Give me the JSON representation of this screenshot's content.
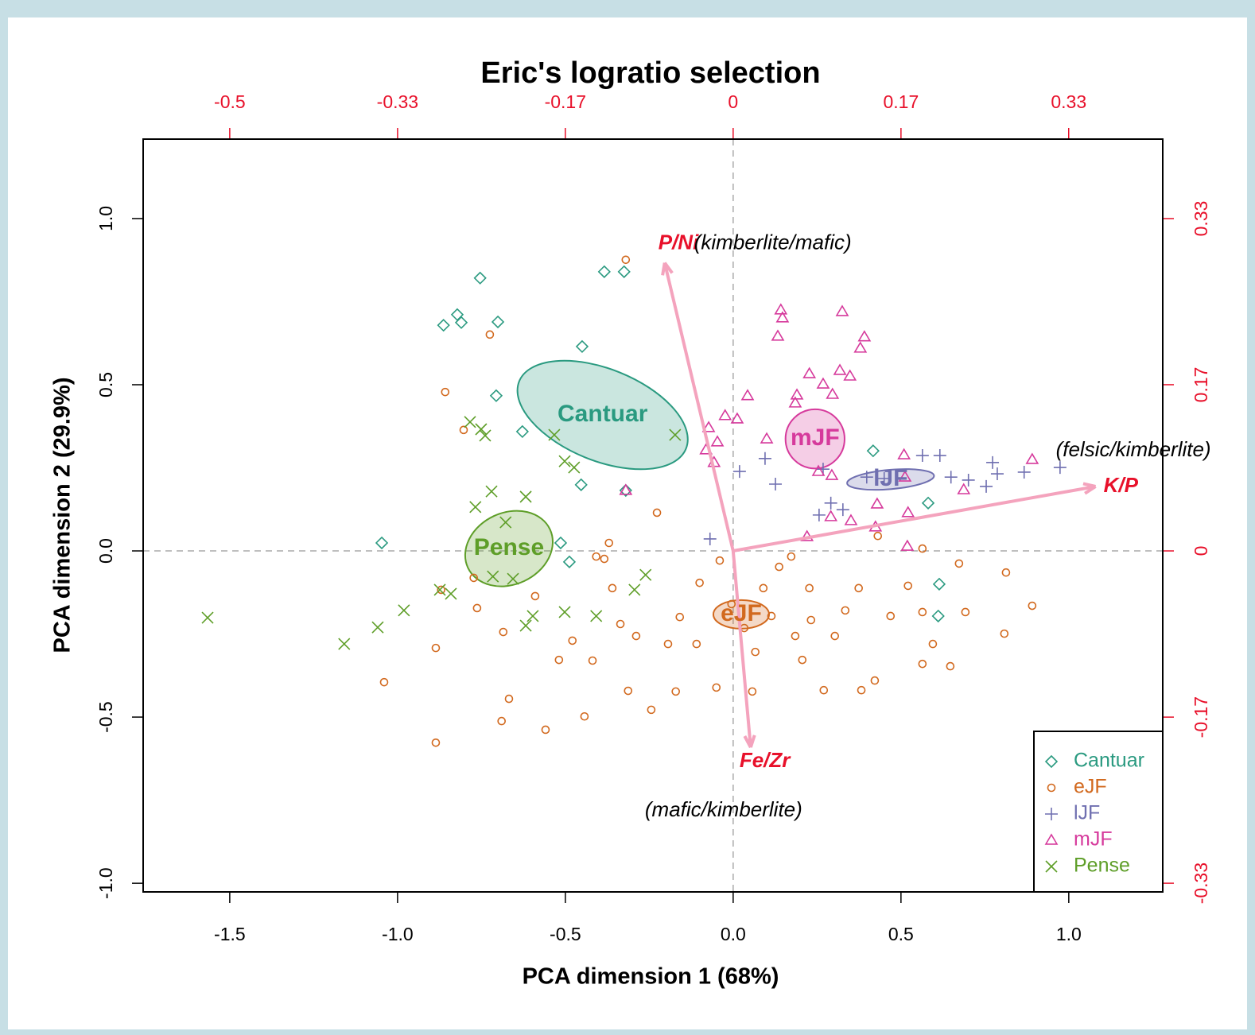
{
  "chart_data": {
    "type": "biplot",
    "title": "Eric's logratio selection",
    "xlabel": "PCA dimension 1 (68%)",
    "ylabel": "PCA dimension 2 (29.9%)",
    "xlim": [
      -1.758,
      1.28
    ],
    "ylim": [
      -1.026,
      1.239
    ],
    "xticks": [
      {
        "value": -1.5,
        "label": "-1.5"
      },
      {
        "value": -1,
        "label": "-1.0"
      },
      {
        "value": -0.5,
        "label": "-0.5"
      },
      {
        "value": 0,
        "label": "0.0"
      },
      {
        "value": 0.5,
        "label": "0.5"
      },
      {
        "value": 1,
        "label": "1.0"
      }
    ],
    "yticks": [
      {
        "value": -1,
        "label": "-1.0"
      },
      {
        "value": -0.5,
        "label": "-0.5"
      },
      {
        "value": 0,
        "label": "0.0"
      },
      {
        "value": 0.5,
        "label": "0.5"
      },
      {
        "value": 1,
        "label": "1.0"
      }
    ],
    "x2lim": [
      -0.586,
      0.4267
    ],
    "y2lim": [
      -0.342,
      0.413
    ],
    "x2ticks": [
      -0.5,
      {
        "value": -0.3333,
        "label": "-0.33"
      },
      {
        "value": -0.1667,
        "label": "-0.17"
      },
      0,
      {
        "value": 0.1667,
        "label": "0.17"
      },
      {
        "value": 0.3333,
        "label": "0.33"
      }
    ],
    "y2ticks": [
      {
        "value": -0.3333,
        "label": "-0.33"
      },
      {
        "value": -0.1667,
        "label": "-0.17"
      },
      0,
      {
        "value": 0.1667,
        "label": "0.17"
      },
      {
        "value": 0.3333,
        "label": "0.33"
      }
    ],
    "secondary_axis_color": "#e8102a",
    "zero_lines": true,
    "legend": "lower right",
    "series": [
      {
        "name": "Cantuar",
        "color": "#2a9a80",
        "marker": "diamond",
        "x": [
          -0.754,
          -0.863,
          -0.822,
          -0.81,
          -0.701,
          -0.384,
          -0.325,
          -0.45,
          -0.706,
          -0.628,
          -0.453,
          -1.047,
          -0.514,
          -0.488,
          -0.32,
          0.417,
          0.581,
          0.614,
          0.611
        ],
        "y": [
          0.821,
          0.679,
          0.711,
          0.687,
          0.689,
          0.84,
          0.84,
          0.615,
          0.467,
          0.359,
          0.199,
          0.024,
          0.024,
          -0.033,
          0.182,
          0.301,
          0.144,
          -0.1,
          -0.196
        ],
        "ellipse": {
          "x": -0.389,
          "y": 0.409,
          "rx": 0.268,
          "ry": 0.138,
          "angle": -22
        }
      },
      {
        "name": "eJF",
        "color": "#d2691e",
        "marker": "circle",
        "x": [
          -0.32,
          -0.725,
          -0.858,
          -0.803,
          -0.227,
          -0.37,
          -0.408,
          -0.384,
          -0.87,
          -0.763,
          -0.886,
          -1.04,
          -0.886,
          -0.69,
          -0.668,
          -0.559,
          -0.443,
          -0.313,
          -0.244,
          -0.171,
          -0.05,
          0.057,
          0.27,
          0.382,
          0.422,
          0.334,
          0.185,
          0.303,
          0.469,
          0.564,
          0.647,
          0.692,
          0.813,
          0.891,
          0.808,
          0.595,
          0.521,
          0.374,
          0.227,
          0.137,
          0.173,
          0.114,
          0.066,
          -0.1,
          -0.04,
          -0.159,
          -0.109,
          -0.194,
          -0.289,
          -0.336,
          -0.36,
          -0.479,
          -0.419,
          -0.519,
          -0.59,
          -0.685,
          -0.773,
          0.673,
          0.564,
          0.431,
          0.564,
          0.206,
          0.232,
          0.033,
          -0.005,
          0.09
        ],
        "y": [
          0.876,
          0.651,
          0.478,
          0.364,
          0.115,
          0.024,
          -0.017,
          -0.024,
          -0.117,
          -0.172,
          -0.292,
          -0.395,
          -0.577,
          -0.512,
          -0.445,
          -0.538,
          -0.498,
          -0.421,
          -0.478,
          -0.423,
          -0.411,
          -0.423,
          -0.419,
          -0.419,
          -0.39,
          -0.179,
          -0.256,
          -0.256,
          -0.196,
          -0.184,
          -0.347,
          -0.184,
          -0.065,
          -0.165,
          -0.249,
          -0.28,
          -0.105,
          -0.112,
          -0.112,
          -0.048,
          -0.017,
          -0.196,
          -0.304,
          -0.096,
          -0.029,
          -0.199,
          -0.28,
          -0.28,
          -0.256,
          -0.22,
          -0.112,
          -0.27,
          -0.33,
          -0.328,
          -0.136,
          -0.244,
          -0.081,
          -0.038,
          0.007,
          0.045,
          -0.34,
          -0.328,
          -0.208,
          -0.232,
          -0.16,
          -0.112
        ],
        "ellipse": {
          "x": 0.024,
          "y": -0.191,
          "rx": 0.083,
          "ry": 0.043,
          "angle": 0
        }
      },
      {
        "name": "lJF",
        "color": "#6f6fb0",
        "marker": "plus",
        "x": [
          -0.069,
          0.019,
          0.095,
          0.126,
          0.268,
          0.291,
          0.256,
          0.327,
          0.45,
          0.564,
          0.616,
          0.649,
          0.701,
          0.754,
          0.773,
          0.787,
          0.867,
          0.974,
          0.398
        ],
        "y": [
          0.036,
          0.239,
          0.278,
          0.201,
          0.246,
          0.144,
          0.108,
          0.124,
          0.218,
          0.287,
          0.287,
          0.222,
          0.213,
          0.194,
          0.266,
          0.232,
          0.237,
          0.251,
          0.222
        ],
        "ellipse": {
          "x": 0.469,
          "y": 0.215,
          "rx": 0.13,
          "ry": 0.029,
          "angle": 5
        }
      },
      {
        "name": "mJF",
        "color": "#d63a9c",
        "marker": "triangle",
        "x": [
          0.142,
          0.147,
          0.133,
          0.325,
          0.391,
          0.379,
          0.227,
          0.268,
          0.318,
          0.348,
          0.296,
          0.043,
          0.19,
          0.185,
          -0.024,
          0.012,
          -0.073,
          -0.047,
          0.1,
          -0.081,
          -0.057,
          0.254,
          0.294,
          0.509,
          0.512,
          0.687,
          0.891,
          0.429,
          0.521,
          0.424,
          0.351,
          0.22,
          0.519,
          0.291,
          -0.32
        ],
        "y": [
          0.725,
          0.701,
          0.646,
          0.72,
          0.644,
          0.61,
          0.533,
          0.502,
          0.543,
          0.526,
          0.471,
          0.467,
          0.469,
          0.445,
          0.407,
          0.397,
          0.371,
          0.328,
          0.337,
          0.304,
          0.266,
          0.239,
          0.227,
          0.289,
          0.222,
          0.184,
          0.275,
          0.141,
          0.115,
          0.072,
          0.091,
          0.043,
          0.014,
          0.103,
          0.182
        ],
        "ellipse": {
          "x": 0.244,
          "y": 0.337,
          "rx": 0.088,
          "ry": 0.089,
          "angle": 0
        }
      },
      {
        "name": "Pense",
        "color": "#5e9e28",
        "marker": "cross",
        "x": [
          -1.566,
          -1.159,
          -1.059,
          -0.981,
          -0.841,
          -0.874,
          -0.784,
          -0.751,
          -0.739,
          -0.72,
          -0.768,
          -0.618,
          -0.678,
          -0.716,
          -0.656,
          -0.533,
          -0.502,
          -0.474,
          -0.173,
          -0.618,
          -0.597,
          -0.502,
          -0.408,
          -0.294,
          -0.261
        ],
        "y": [
          -0.201,
          -0.28,
          -0.23,
          -0.179,
          -0.129,
          -0.117,
          0.388,
          0.366,
          0.347,
          0.179,
          0.132,
          0.163,
          0.086,
          -0.077,
          -0.084,
          0.349,
          0.27,
          0.251,
          0.349,
          -0.225,
          -0.196,
          -0.184,
          -0.196,
          -0.117,
          -0.072
        ],
        "ellipse": {
          "x": -0.668,
          "y": 0.007,
          "rx": 0.135,
          "ry": 0.108,
          "angle": 25
        }
      }
    ],
    "loadings": [
      {
        "label": "P/Ni",
        "note": "(kimberlite/mafic)",
        "x": -0.068,
        "y": 0.289
      },
      {
        "label": "K/P",
        "note": "(felsic/kimberlite)",
        "x": 0.36,
        "y": 0.0646
      },
      {
        "label": "Fe/Zr",
        "note": "(mafic/kimberlite)",
        "x": 0.0174,
        "y": -0.197
      }
    ]
  }
}
